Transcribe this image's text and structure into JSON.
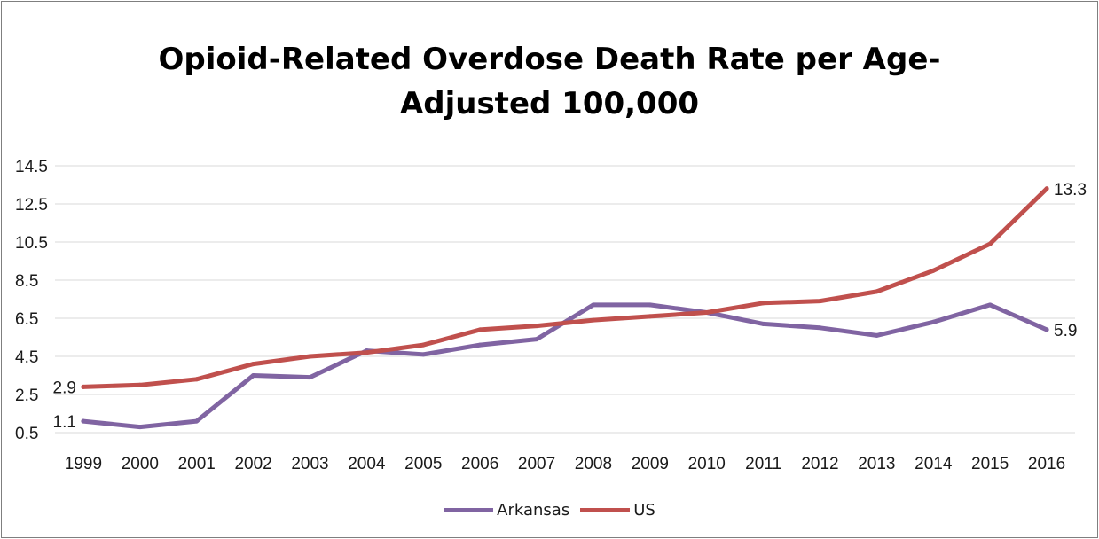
{
  "chart_data": {
    "type": "line",
    "title_lines": [
      "Opioid-Related Overdose Death Rate per Age-",
      "Adjusted 100,000"
    ],
    "x": [
      "1999",
      "2000",
      "2001",
      "2002",
      "2003",
      "2004",
      "2005",
      "2006",
      "2007",
      "2008",
      "2009",
      "2010",
      "2011",
      "2012",
      "2013",
      "2014",
      "2015",
      "2016"
    ],
    "yticks": [
      "0.5",
      "2.5",
      "4.5",
      "6.5",
      "8.5",
      "10.5",
      "12.5",
      "14.5"
    ],
    "ylim": [
      0.5,
      14.5
    ],
    "grid": true,
    "legend_position": "bottom",
    "series": [
      {
        "name": "Arkansas",
        "color": "#8064a2",
        "values": [
          1.1,
          0.8,
          1.1,
          3.5,
          3.4,
          4.8,
          4.6,
          5.1,
          5.4,
          7.2,
          7.2,
          6.8,
          6.2,
          6.0,
          5.6,
          6.3,
          7.2,
          5.9
        ]
      },
      {
        "name": "US",
        "color": "#c0504d",
        "values": [
          2.9,
          3.0,
          3.3,
          4.1,
          4.5,
          4.7,
          5.1,
          5.9,
          6.1,
          6.4,
          6.6,
          6.8,
          7.3,
          7.4,
          7.9,
          9.0,
          10.4,
          13.3
        ]
      }
    ],
    "data_labels": [
      {
        "series": "Arkansas",
        "x": "1999",
        "text": "1.1"
      },
      {
        "series": "US",
        "x": "1999",
        "text": "2.9"
      },
      {
        "series": "US",
        "x": "2016",
        "text": "13.3"
      },
      {
        "series": "Arkansas",
        "x": "2016",
        "text": "5.9"
      }
    ]
  }
}
